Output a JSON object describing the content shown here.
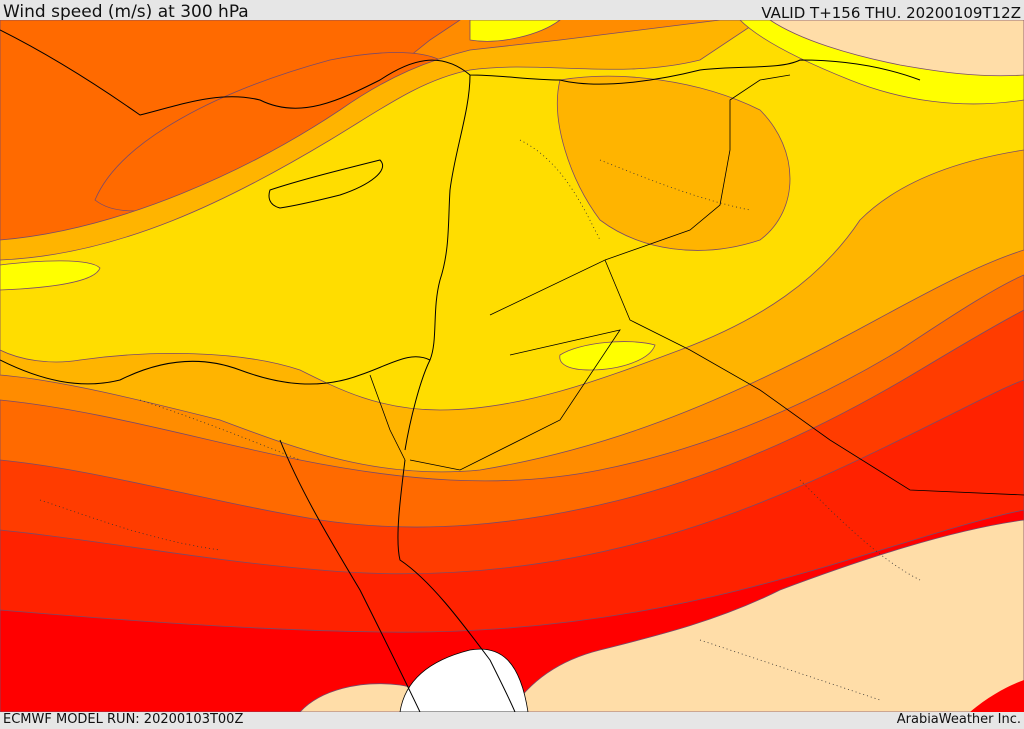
{
  "header": {
    "title": "Wind speed (m/s) at 300 hPa",
    "valid": "VALID T+156 THU. 20200109T12Z"
  },
  "footer": {
    "model_run": "ECMWF MODEL RUN: 20200103T00Z",
    "credit": "ArabiaWeather Inc."
  },
  "colors": {
    "lt10": "#ffdda8",
    "b10_20": "#ffff00",
    "b20_30": "#ffdd00",
    "b30_40": "#ffb400",
    "b40_50": "#ff8c00",
    "b50_60": "#ff6a00",
    "b60_70": "#ff3c00",
    "b70_80": "#ff2200",
    "gt80": "#ff0000",
    "land_none": "#ffffff"
  }
}
